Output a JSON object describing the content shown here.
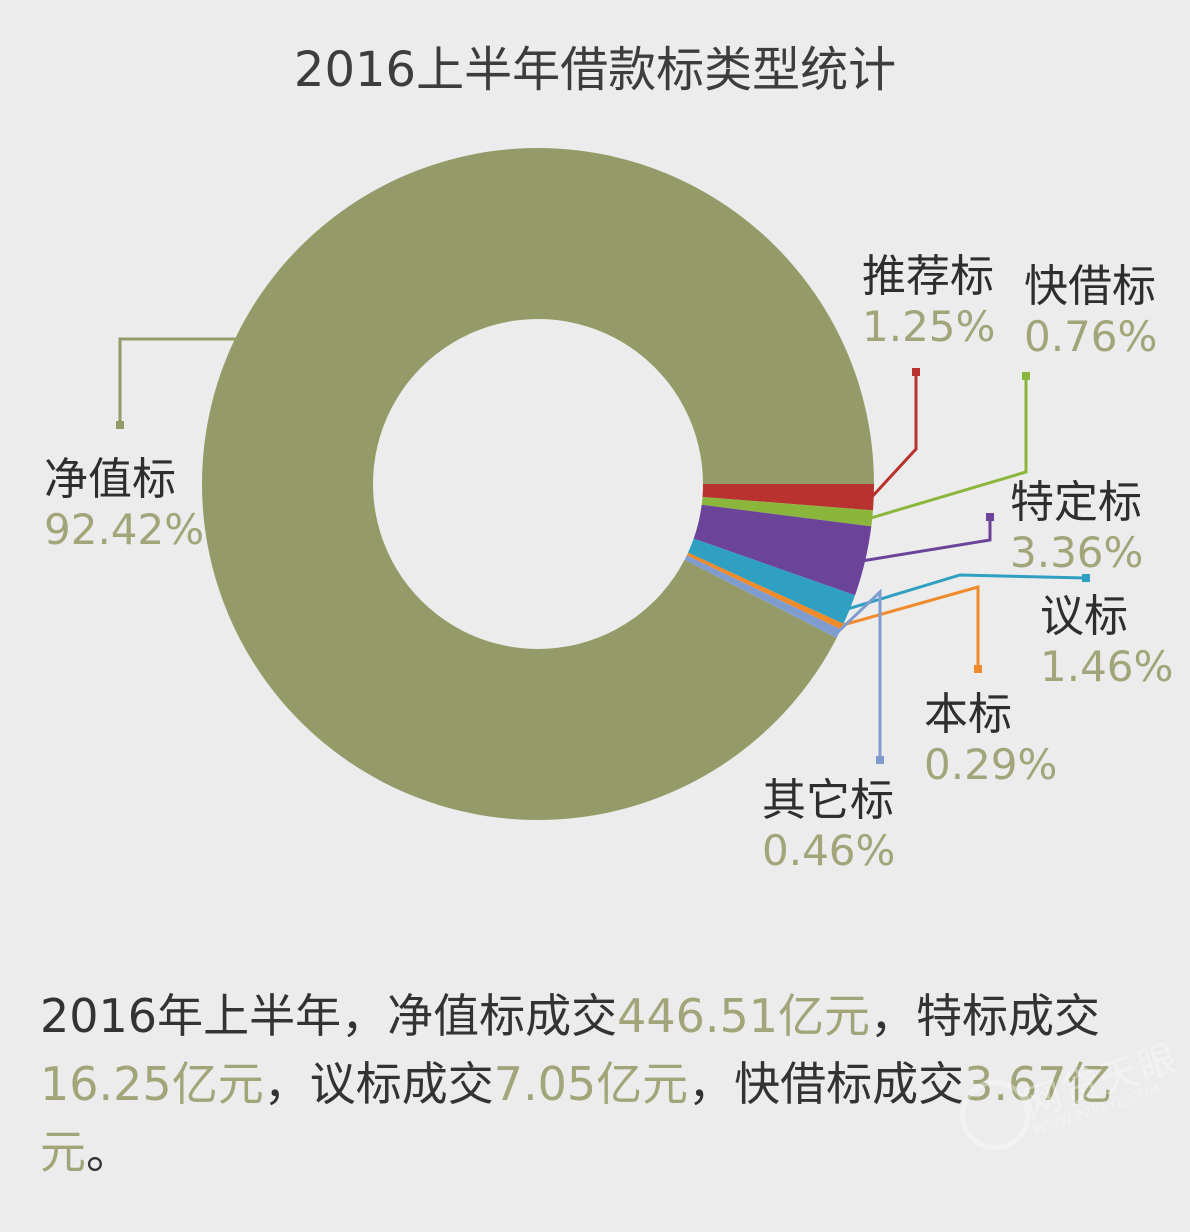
{
  "chart_data": {
    "type": "pie",
    "title": "2016上半年借款标类型统计",
    "series": [
      {
        "name": "净值标",
        "value": 92.42,
        "label": "92.42%",
        "color": "#959b68"
      },
      {
        "name": "推荐标",
        "value": 1.25,
        "label": "1.25%",
        "color": "#b8322f"
      },
      {
        "name": "快借标",
        "value": 0.76,
        "label": "0.76%",
        "color": "#8bb63c"
      },
      {
        "name": "特定标",
        "value": 3.36,
        "label": "3.36%",
        "color": "#6b449a"
      },
      {
        "name": "议标",
        "value": 1.46,
        "label": "1.46%",
        "color": "#2f9fc2"
      },
      {
        "name": "本标",
        "value": 0.29,
        "label": "0.29%",
        "color": "#f08a2a"
      },
      {
        "name": "其它标",
        "value": 0.46,
        "label": "0.46%",
        "color": "#7f9ccf"
      }
    ],
    "hole": true,
    "label_color": "#a2a57a"
  },
  "summary": {
    "p1": "2016年上半年，净值标成交",
    "v1": "446.51亿元",
    "p2": "，特标成交",
    "v2": "16.25亿元",
    "p3": "，议标成交",
    "v3": "7.05亿元",
    "p4": "，快借标成交",
    "v4": "3.67亿元",
    "p5": "。"
  },
  "watermark": {
    "text": "网贷天眼",
    "url": "WWW.P2PEYE.COM"
  }
}
